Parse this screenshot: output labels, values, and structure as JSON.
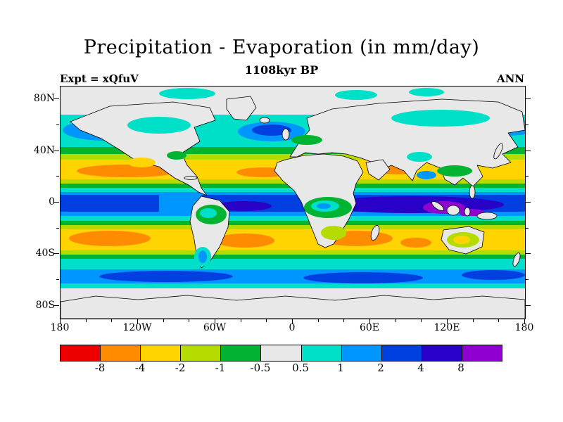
{
  "title": "Precipitation - Evaporation (in mm/day)",
  "subtitle": "1108kyr BP",
  "experiment_label": "Expt = xQfuV",
  "season_label": "ANN",
  "axes": {
    "lat_ticks": [
      "80N",
      "40N",
      "0",
      "40S",
      "80S"
    ],
    "lon_ticks": [
      "180",
      "120W",
      "60W",
      "0",
      "60E",
      "120E",
      "180"
    ]
  },
  "colorbar": {
    "labels": [
      "-8",
      "-4",
      "-2",
      "-1",
      "-0.5",
      "0.5",
      "1",
      "2",
      "4",
      "8"
    ],
    "colors": [
      "#ee0000",
      "#ff8c00",
      "#ffd400",
      "#b4dc00",
      "#00b432",
      "#e8e8e8",
      "#00e0c8",
      "#0096ff",
      "#0040e0",
      "#2800c8",
      "#9000d0"
    ],
    "cell_ranges": [
      "< -8",
      "-8 to -4",
      "-4 to -2",
      "-2 to -1",
      "-1 to -0.5",
      "-0.5 to 0.5",
      "0.5 to 1",
      "1 to 2",
      "2 to 4",
      "4 to 8",
      "> 8"
    ]
  },
  "chart_data": {
    "type": "heatmap",
    "title": "Precipitation - Evaporation (in mm/day)",
    "subtitle": "1108kyr BP",
    "annotations": [
      "Expt = xQfuV",
      "ANN"
    ],
    "projection": "equirectangular world map with coastlines",
    "field": "Precipitation minus Evaporation",
    "units": "mm/day",
    "contour_levels": [
      -8,
      -4,
      -2,
      -1,
      -0.5,
      0.5,
      1,
      2,
      4,
      8
    ],
    "palette": [
      "#ee0000",
      "#ff8c00",
      "#ffd400",
      "#b4dc00",
      "#00b432",
      "#e8e8e8",
      "#00e0c8",
      "#0096ff",
      "#0040e0",
      "#2800c8",
      "#9000d0"
    ],
    "x_axis": {
      "label": "longitude",
      "range_deg": [
        -180,
        180
      ],
      "tick_labels": [
        "180",
        "120W",
        "60W",
        "0",
        "60E",
        "120E",
        "180"
      ]
    },
    "y_axis": {
      "label": "latitude",
      "range_deg": [
        -90,
        90
      ],
      "tick_labels": [
        "80N",
        "40N",
        "0",
        "40S",
        "80S"
      ]
    },
    "legend_position": "bottom horizontal colorbar",
    "grid": false,
    "pattern_summary": [
      {
        "region": "ITCZ band near the equator across all ocean basins",
        "value_mm_day": "2 to 8 (P > E, blue)"
      },
      {
        "region": "Maritime Continent / western Pacific warm pool",
        "value_mm_day": "> 8 (purple maxima)"
      },
      {
        "region": "Subtropical oceans ~15-35N and ~15-35S",
        "value_mm_day": "-2 to -8 (E > P, yellow-orange)"
      },
      {
        "region": "Mid-latitude storm tracks ~40-65N and ~45-65S",
        "value_mm_day": "1 to 4 (cyan-blue bands)"
      },
      {
        "region": "Equatorial Africa (Congo) and Amazonia",
        "value_mm_day": "0.5 to 2 (green-cyan)"
      },
      {
        "region": "Deserts, polar caps and most continental interiors",
        "value_mm_day": "-0.5 to 0.5 (near zero, gray)"
      }
    ]
  }
}
